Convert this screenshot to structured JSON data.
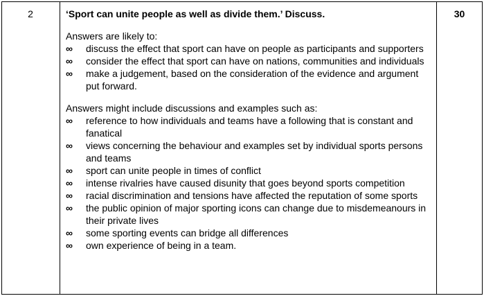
{
  "question": {
    "number": "2",
    "text": "‘Sport can unite people as well as divide them.’ Discuss.",
    "marks": "30"
  },
  "bullet_symbol": "∞",
  "section1": {
    "intro": "Answers are likely to:",
    "items": [
      "discuss the effect that sport can have on people as participants and supporters",
      "consider the effect that sport can have on nations, communities and individuals",
      "make a judgement, based on the consideration of the evidence and argument put forward."
    ]
  },
  "section2": {
    "intro": "Answers might include discussions and examples such as:",
    "items": [
      "reference to how individuals and teams have a following that is constant and fanatical",
      "views concerning the behaviour and examples set by individual sports persons and teams",
      "sport can unite people in times of conflict",
      "intense rivalries have caused disunity that goes beyond sports competition",
      "racial discrimination and tensions have affected the reputation of some sports",
      "the public opinion of major sporting icons can change due to misdemeanours in their private lives",
      "some sporting events can bridge all differences",
      "own experience of being in a team."
    ]
  }
}
